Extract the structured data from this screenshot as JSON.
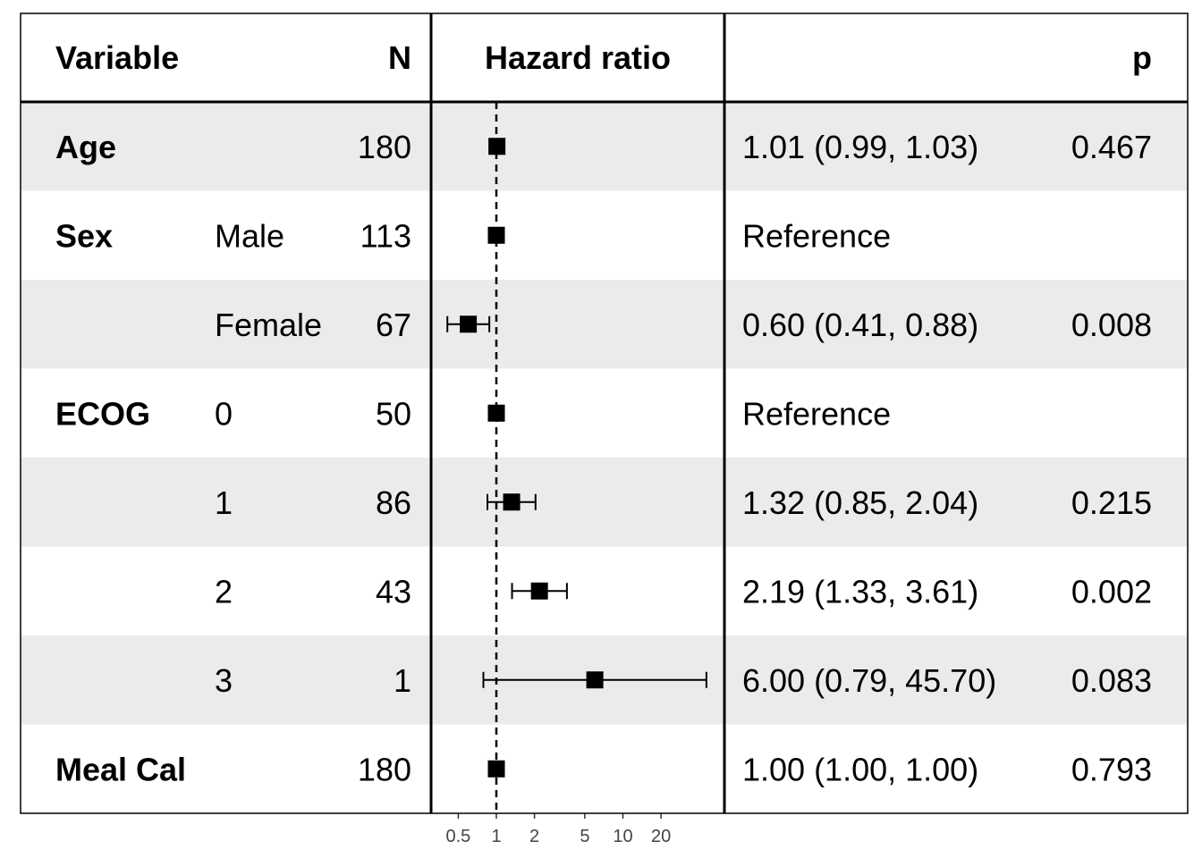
{
  "chart_data": {
    "type": "forest",
    "headers": {
      "variable": "Variable",
      "n": "N",
      "hazard_ratio": "Hazard ratio",
      "estimate": "",
      "p": "p"
    },
    "reference_line": 1,
    "x_scale": "log",
    "xlim": [
      0.4,
      50
    ],
    "x_ticks": [
      0.5,
      1,
      2,
      5,
      10,
      20
    ],
    "x_tick_labels": [
      "0.5",
      "1",
      "2",
      "5",
      "10",
      "20"
    ],
    "row_shading": "alternating",
    "rows": [
      {
        "variable": "Age",
        "level": "",
        "n": "180",
        "hr": 1.01,
        "lower": 0.99,
        "upper": 1.03,
        "estimate": "1.01 (0.99, 1.03)",
        "p": "0.467"
      },
      {
        "variable": "Sex",
        "level": "Male",
        "n": "113",
        "hr": 1,
        "lower": null,
        "upper": null,
        "estimate": "Reference",
        "p": ""
      },
      {
        "variable": "",
        "level": "Female",
        "n": "67",
        "hr": 0.6,
        "lower": 0.41,
        "upper": 0.88,
        "estimate": "0.60 (0.41, 0.88)",
        "p": "0.008"
      },
      {
        "variable": "ECOG",
        "level": "0",
        "n": "50",
        "hr": 1,
        "lower": null,
        "upper": null,
        "estimate": "Reference",
        "p": ""
      },
      {
        "variable": "",
        "level": "1",
        "n": "86",
        "hr": 1.32,
        "lower": 0.85,
        "upper": 2.04,
        "estimate": "1.32 (0.85, 2.04)",
        "p": "0.215"
      },
      {
        "variable": "",
        "level": "2",
        "n": "43",
        "hr": 2.19,
        "lower": 1.33,
        "upper": 3.61,
        "estimate": "2.19 (1.33, 3.61)",
        "p": "0.002"
      },
      {
        "variable": "",
        "level": "3",
        "n": "1",
        "hr": 6.0,
        "lower": 0.79,
        "upper": 45.7,
        "estimate": "6.00 (0.79, 45.70)",
        "p": "0.083"
      },
      {
        "variable": "Meal Cal",
        "level": "",
        "n": "180",
        "hr": 1.0,
        "lower": 1.0,
        "upper": 1.0,
        "estimate": "1.00 (1.00, 1.00)",
        "p": "0.793"
      }
    ],
    "colors": {
      "shade": "#ebebeb",
      "marker": "#000000",
      "line": "#000000",
      "tick_text": "#444444"
    }
  }
}
